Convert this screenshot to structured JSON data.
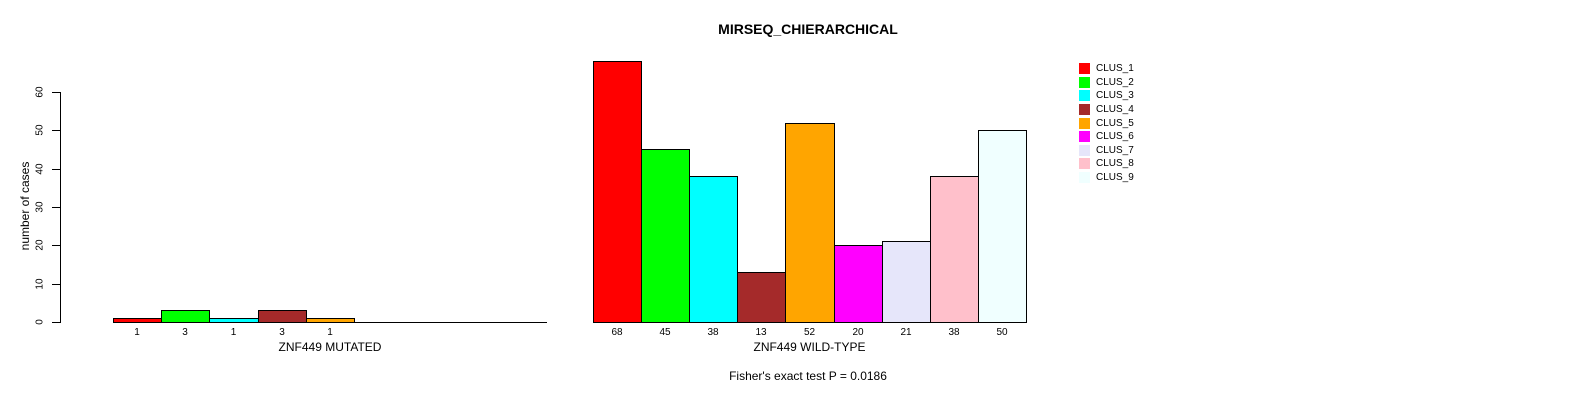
{
  "chart_data": {
    "type": "bar",
    "title": "MIRSEQ_CHIERARCHICAL",
    "ylabel": "number of cases",
    "ylim": [
      0,
      69
    ],
    "yticks": [
      0,
      10,
      20,
      30,
      40,
      50,
      60
    ],
    "grid": false,
    "legend_position": "right",
    "legend": [
      {
        "label": "CLUS_1",
        "color": "#FF0000"
      },
      {
        "label": "CLUS_2",
        "color": "#00FF00"
      },
      {
        "label": "CLUS_3",
        "color": "#00FFFF"
      },
      {
        "label": "CLUS_4",
        "color": "#A52A2A"
      },
      {
        "label": "CLUS_5",
        "color": "#FFA500"
      },
      {
        "label": "CLUS_6",
        "color": "#FF00FF"
      },
      {
        "label": "CLUS_7",
        "color": "#E6E6FA"
      },
      {
        "label": "CLUS_8",
        "color": "#FFC0CB"
      },
      {
        "label": "CLUS_9",
        "color": "#F0FFFF"
      }
    ],
    "groups": [
      {
        "xlabel": "ZNF449 MUTATED",
        "categories": [
          "CLUS_1",
          "CLUS_2",
          "CLUS_3",
          "CLUS_4",
          "CLUS_5"
        ],
        "values": [
          1,
          3,
          1,
          3,
          1
        ],
        "bar_labels": [
          "1",
          "3",
          "1",
          "3",
          "1"
        ],
        "colors": [
          "#FF0000",
          "#00FF00",
          "#00FFFF",
          "#A52A2A",
          "#FFA500"
        ]
      },
      {
        "xlabel": "ZNF449 WILD-TYPE",
        "categories": [
          "CLUS_1",
          "CLUS_2",
          "CLUS_3",
          "CLUS_4",
          "CLUS_5",
          "CLUS_6",
          "CLUS_7",
          "CLUS_8",
          "CLUS_9"
        ],
        "values": [
          68,
          45,
          38,
          13,
          52,
          20,
          21,
          38,
          50
        ],
        "bar_labels": [
          "68",
          "45",
          "38",
          "13",
          "52",
          "20",
          "21",
          "38",
          "50"
        ],
        "colors": [
          "#FF0000",
          "#00FF00",
          "#00FFFF",
          "#A52A2A",
          "#FFA500",
          "#FF00FF",
          "#E6E6FA",
          "#FFC0CB",
          "#F0FFFF"
        ]
      }
    ],
    "annotation": "Fisher's exact test P = 0.0186",
    "axis_color": "#000000",
    "background_color": "#FFFFFF"
  }
}
